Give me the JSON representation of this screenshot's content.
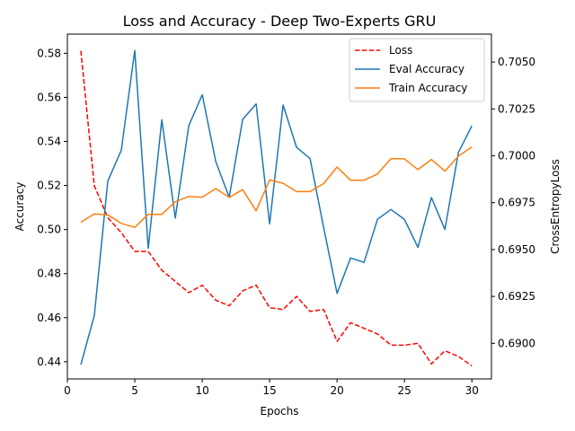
{
  "chart_data": {
    "type": "line",
    "title": "Loss and Accuracy - Deep Two-Experts GRU",
    "xlabel": "Epochs",
    "ylabel_left": "Accuracy",
    "ylabel_right": "CrossEntropyLoss",
    "x": [
      1,
      2,
      3,
      4,
      5,
      6,
      7,
      8,
      9,
      10,
      11,
      12,
      13,
      14,
      15,
      16,
      17,
      18,
      19,
      20,
      21,
      22,
      23,
      24,
      25,
      26,
      27,
      28,
      29,
      30
    ],
    "xlim": [
      0.0,
      31.45
    ],
    "ylim_left": [
      0.4322,
      0.5887
    ],
    "ylim_right": [
      0.6881,
      0.70649
    ],
    "x_ticks": [
      0,
      5,
      10,
      15,
      20,
      25,
      30
    ],
    "x_tick_labels": [
      "0",
      "5",
      "10",
      "15",
      "20",
      "25",
      "30"
    ],
    "y_left_ticks": [
      0.44,
      0.46,
      0.48,
      0.5,
      0.52,
      0.54,
      0.56,
      0.58
    ],
    "y_left_tick_labels": [
      "0.44",
      "0.46",
      "0.48",
      "0.50",
      "0.52",
      "0.54",
      "0.56",
      "0.58"
    ],
    "y_right_ticks": [
      0.69,
      0.6925,
      0.695,
      0.6975,
      0.7,
      0.7025,
      0.705
    ],
    "y_right_tick_labels": [
      "0.6900",
      "0.6925",
      "0.6950",
      "0.6975",
      "0.7000",
      "0.7025",
      "0.7050"
    ],
    "legend_position": "top-right",
    "grid": false,
    "series": [
      {
        "name": "Loss",
        "axis": "right",
        "color": "#ff0000",
        "dash": "dashed",
        "values": [
          0.7056,
          0.6984,
          0.6967,
          0.6959,
          0.6949,
          0.6949,
          0.6939,
          0.6933,
          0.6927,
          0.6931,
          0.6923,
          0.692,
          0.6928,
          0.6931,
          0.6919,
          0.6918,
          0.6925,
          0.6917,
          0.6918,
          0.6901,
          0.6911,
          0.6908,
          0.6905,
          0.6899,
          0.6899,
          0.69,
          0.6889,
          0.6896,
          0.6893,
          0.6888
        ]
      },
      {
        "name": "Eval Accuracy",
        "axis": "left",
        "color": "#1f77b4",
        "dash": "solid",
        "values": [
          0.4387,
          0.461,
          0.522,
          0.536,
          0.5813,
          0.4915,
          0.5498,
          0.5052,
          0.5471,
          0.5612,
          0.531,
          0.5146,
          0.55,
          0.557,
          0.5026,
          0.5565,
          0.5373,
          0.5322,
          0.501,
          0.471,
          0.4871,
          0.4851,
          0.5047,
          0.5091,
          0.5046,
          0.4919,
          0.5145,
          0.5,
          0.535,
          0.5471
        ]
      },
      {
        "name": "Train Accuracy",
        "axis": "left",
        "color": "#ff7f0e",
        "dash": "solid",
        "values": [
          0.5033,
          0.5071,
          0.5067,
          0.5028,
          0.501,
          0.5069,
          0.5069,
          0.5126,
          0.515,
          0.5147,
          0.5186,
          0.5146,
          0.5181,
          0.5085,
          0.5225,
          0.521,
          0.5172,
          0.5172,
          0.5209,
          0.5284,
          0.5224,
          0.5224,
          0.5252,
          0.5322,
          0.5321,
          0.5272,
          0.5318,
          0.5265,
          0.5333,
          0.5375
        ]
      }
    ]
  }
}
